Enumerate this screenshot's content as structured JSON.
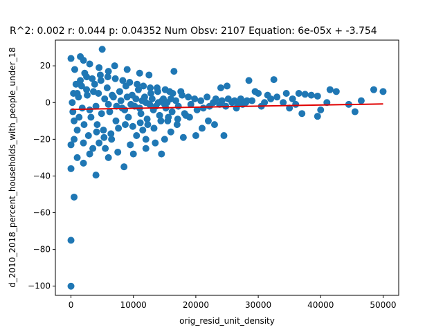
{
  "chart_data": {
    "type": "scatter",
    "title": "R^2: 0.002 r: 0.044 p: 0.04352 Num Obsv: 2107 Equation: 6e-05x + -3.754",
    "xlabel": "orig_resid_unit_density",
    "ylabel": "d_2010_2018_percent_households_with_people_under_18",
    "xlim": [
      -2500,
      52500
    ],
    "ylim": [
      -105,
      34
    ],
    "xticks": [
      0,
      10000,
      20000,
      30000,
      40000,
      50000
    ],
    "yticks": [
      -100,
      -80,
      -60,
      -40,
      -20,
      0,
      20
    ],
    "grid": false,
    "series": [
      {
        "points_color": "#1f77b4",
        "points": [
          [
            0,
            -100
          ],
          [
            0,
            -75
          ],
          [
            500,
            -51.5
          ],
          [
            0,
            -36
          ],
          [
            4000,
            -39.5
          ],
          [
            0,
            24
          ],
          [
            1500,
            25
          ],
          [
            5000,
            29
          ],
          [
            2000,
            23
          ],
          [
            600,
            18
          ],
          [
            0,
            -23
          ],
          [
            500,
            -20
          ],
          [
            1000,
            -30
          ],
          [
            2000,
            -33
          ],
          [
            3000,
            -28
          ],
          [
            6000,
            -30
          ],
          [
            8500,
            -35
          ],
          [
            10000,
            -28
          ],
          [
            12000,
            -25
          ],
          [
            14500,
            -28
          ],
          [
            16500,
            17
          ],
          [
            12500,
            15
          ],
          [
            9000,
            18
          ],
          [
            11000,
            16
          ],
          [
            7000,
            20
          ],
          [
            3000,
            21
          ],
          [
            4500,
            19
          ],
          [
            6000,
            17
          ],
          [
            2500,
            14
          ],
          [
            1500,
            12
          ],
          [
            24000,
            8
          ],
          [
            25000,
            9
          ],
          [
            28500,
            12
          ],
          [
            29500,
            6
          ],
          [
            30000,
            5
          ],
          [
            32500,
            12.5
          ],
          [
            31500,
            4
          ],
          [
            33000,
            3
          ],
          [
            34500,
            5
          ],
          [
            35500,
            2
          ],
          [
            36500,
            5
          ],
          [
            37500,
            4.5
          ],
          [
            38500,
            4
          ],
          [
            39500,
            3.5
          ],
          [
            41500,
            7
          ],
          [
            42500,
            6
          ],
          [
            44500,
            -1
          ],
          [
            45500,
            -5
          ],
          [
            46500,
            1
          ],
          [
            48500,
            7
          ],
          [
            50000,
            6
          ],
          [
            37000,
            -6
          ],
          [
            39500,
            -7.5
          ],
          [
            40000,
            -4
          ],
          [
            41000,
            0
          ],
          [
            35000,
            -3
          ],
          [
            36000,
            -1
          ],
          [
            34000,
            0
          ],
          [
            26500,
            -3
          ],
          [
            28000,
            0
          ],
          [
            27500,
            -1
          ],
          [
            29000,
            1
          ],
          [
            30500,
            -2
          ],
          [
            31000,
            0
          ],
          [
            32000,
            2
          ],
          [
            23000,
            -12
          ],
          [
            24500,
            -18
          ],
          [
            21000,
            -14
          ],
          [
            22000,
            -10
          ],
          [
            20000,
            -18
          ],
          [
            19000,
            -8
          ],
          [
            18000,
            -19
          ],
          [
            17000,
            -12
          ],
          [
            16000,
            -16
          ],
          [
            15500,
            -10
          ],
          [
            15000,
            -20
          ],
          [
            13500,
            -22
          ],
          [
            12000,
            -20
          ],
          [
            11500,
            -15
          ],
          [
            10500,
            -18
          ],
          [
            9500,
            -23
          ],
          [
            7500,
            -27
          ],
          [
            6500,
            -20
          ],
          [
            5500,
            -25
          ],
          [
            4500,
            -22
          ],
          [
            3500,
            -25
          ],
          [
            2000,
            -22
          ],
          [
            1000,
            -15
          ],
          [
            500,
            -10
          ],
          [
            300,
            -5
          ],
          [
            200,
            0
          ],
          [
            400,
            5
          ],
          [
            800,
            10
          ],
          [
            1200,
            3
          ],
          [
            1800,
            -3
          ],
          [
            2500,
            7
          ],
          [
            3200,
            -8
          ],
          [
            3800,
            10
          ],
          [
            4200,
            -12
          ],
          [
            4800,
            12
          ],
          [
            5200,
            -15
          ],
          [
            5800,
            8
          ],
          [
            6200,
            -5
          ],
          [
            6800,
            3
          ],
          [
            7200,
            -10
          ],
          [
            7800,
            6
          ],
          [
            8200,
            -3
          ],
          [
            8800,
            9
          ],
          [
            9200,
            -8
          ],
          [
            9800,
            4
          ],
          [
            10200,
            -2
          ],
          [
            10800,
            7
          ],
          [
            11200,
            -6
          ],
          [
            11800,
            3
          ],
          [
            12200,
            -9
          ],
          [
            12800,
            5
          ],
          [
            13200,
            -4
          ],
          [
            13800,
            8
          ],
          [
            14200,
            -7
          ],
          [
            14800,
            2
          ],
          [
            15200,
            -3
          ],
          [
            15800,
            6
          ],
          [
            16200,
            -5
          ],
          [
            16800,
            1
          ],
          [
            17200,
            -2
          ],
          [
            17800,
            4
          ],
          [
            18200,
            -6
          ],
          [
            18800,
            3
          ],
          [
            19200,
            -1
          ],
          [
            19800,
            2
          ],
          [
            20200,
            -4
          ],
          [
            20800,
            1
          ],
          [
            21200,
            -3
          ],
          [
            21800,
            3
          ],
          [
            22200,
            -2
          ],
          [
            22800,
            0
          ],
          [
            23200,
            2
          ],
          [
            23800,
            -1
          ],
          [
            24200,
            1
          ],
          [
            24800,
            -2
          ],
          [
            25200,
            2
          ],
          [
            25800,
            0
          ],
          [
            26200,
            1
          ],
          [
            26800,
            -1
          ],
          [
            27200,
            2
          ],
          [
            27800,
            0
          ],
          [
            28200,
            1
          ],
          [
            2200,
            16
          ],
          [
            2800,
            -18
          ],
          [
            3400,
            13
          ],
          [
            4100,
            -16
          ],
          [
            4700,
            15
          ],
          [
            5300,
            -19
          ],
          [
            5900,
            14
          ],
          [
            6400,
            -17
          ],
          [
            7100,
            13
          ],
          [
            7600,
            -14
          ],
          [
            8300,
            12
          ],
          [
            8700,
            -12
          ],
          [
            9400,
            11
          ],
          [
            9900,
            -13
          ],
          [
            10600,
            10
          ],
          [
            11100,
            -11
          ],
          [
            11600,
            9
          ],
          [
            12300,
            -12
          ],
          [
            12700,
            8
          ],
          [
            13300,
            -14
          ],
          [
            13900,
            6
          ],
          [
            14400,
            -10
          ],
          [
            15100,
            7
          ],
          [
            15600,
            -8
          ],
          [
            16300,
            5
          ],
          [
            17100,
            -9
          ],
          [
            17600,
            6
          ],
          [
            18400,
            -7
          ],
          [
            1000,
            5
          ],
          [
            1300,
            -8
          ],
          [
            1700,
            9
          ],
          [
            2100,
            -12
          ],
          [
            2600,
            4
          ],
          [
            3000,
            -4
          ],
          [
            3600,
            6
          ],
          [
            4000,
            -2
          ],
          [
            4400,
            5
          ],
          [
            4900,
            -6
          ],
          [
            5400,
            2
          ],
          [
            6000,
            -1
          ],
          [
            6600,
            4
          ],
          [
            7300,
            -2
          ],
          [
            8000,
            1
          ],
          [
            8600,
            -4
          ],
          [
            9000,
            3
          ],
          [
            9600,
            -1
          ],
          [
            10400,
            2
          ],
          [
            11000,
            -3
          ],
          [
            11400,
            1
          ],
          [
            12000,
            0
          ],
          [
            12600,
            -1
          ],
          [
            13000,
            2
          ],
          [
            13600,
            -2
          ],
          [
            14000,
            0
          ],
          [
            14600,
            1
          ],
          [
            15000,
            -1
          ],
          [
            15400,
            0
          ],
          [
            16000,
            2
          ]
        ]
      }
    ],
    "regression": {
      "slope": 6e-05,
      "intercept": -3.754,
      "x_range": [
        0,
        50000
      ],
      "color": "#e00000"
    }
  }
}
